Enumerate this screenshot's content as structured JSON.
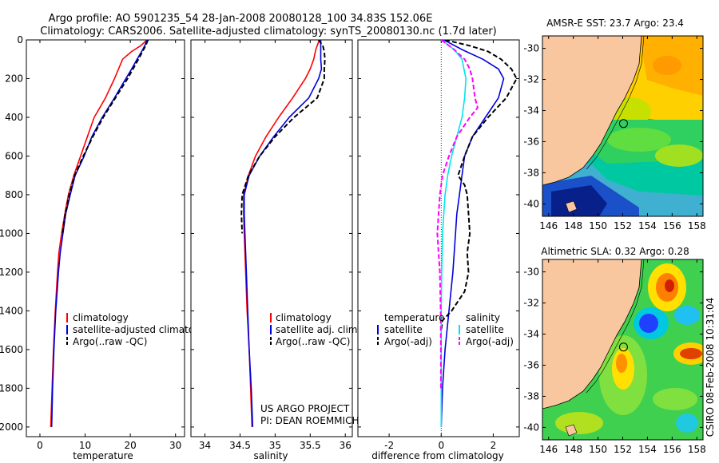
{
  "header": {
    "line1": "Argo profile: AO 5901235_54 28-Jan-2008 20080128_100 34.83S 152.06E",
    "line2": "Climatology: CARS2006. Satellite-adjusted climatology: synTS_20080130.nc (1.7d later)"
  },
  "side_text": "CSIRO 08-Feb-2008 10:31:04",
  "colors": {
    "red": "#ff0000",
    "blue": "#0000dd",
    "black": "#000000",
    "cyan": "#00e5ee",
    "magenta": "#ff00ff",
    "land": "#f8c7a0"
  },
  "chart_data": [
    {
      "type": "line",
      "name": "temperature-profile",
      "xlabel": "temperature",
      "xlim": [
        -3,
        32
      ],
      "ylim": [
        2050,
        0
      ],
      "xticks": [
        0,
        10,
        20,
        30
      ],
      "xtick_labels": [
        "0",
        "10",
        "20",
        "30"
      ],
      "yticks": [
        0,
        200,
        400,
        600,
        800,
        1000,
        1200,
        1400,
        1600,
        1800,
        2000
      ],
      "ytick_labels": [
        "0",
        "200",
        "400",
        "600",
        "800",
        "1000",
        "1200",
        "1400",
        "1600",
        "1800",
        "2000"
      ],
      "legend": [
        "climatology",
        "satellite-adjusted climatology",
        "Argo(..raw -QC)"
      ],
      "series": [
        {
          "name": "climatology",
          "color": "red",
          "dash": false,
          "depth": [
            0,
            30,
            60,
            100,
            200,
            300,
            400,
            500,
            600,
            700,
            800,
            900,
            1000,
            1100,
            1200,
            1400,
            1600,
            1800,
            2000
          ],
          "values": [
            23.7,
            22.3,
            20.3,
            18.3,
            16.5,
            14.5,
            12.0,
            10.5,
            9.0,
            7.5,
            6.3,
            5.5,
            4.8,
            4.2,
            3.9,
            3.4,
            3.0,
            2.7,
            2.4
          ]
        },
        {
          "name": "satellite-adjusted climatology",
          "color": "blue",
          "dash": false,
          "depth": [
            0,
            30,
            60,
            100,
            150,
            200,
            300,
            400,
            500,
            600,
            700,
            800,
            900,
            1000,
            1100,
            1200,
            1400,
            1600,
            1800,
            2000
          ],
          "values": [
            23.7,
            23.2,
            22.5,
            21.5,
            20.3,
            19.0,
            16.5,
            13.8,
            11.5,
            9.8,
            7.8,
            6.7,
            5.7,
            5.1,
            4.5,
            4.1,
            3.5,
            3.1,
            2.8,
            2.6
          ]
        },
        {
          "name": "Argo(..raw -QC)",
          "color": "black",
          "dash": true,
          "depth": [
            0,
            30,
            60,
            100,
            150,
            200,
            300,
            400,
            500,
            600,
            700,
            800,
            900,
            1000
          ],
          "values": [
            23.9,
            23.4,
            22.7,
            21.8,
            20.6,
            19.4,
            16.7,
            14.0,
            11.7,
            9.6,
            7.7,
            6.5,
            5.6,
            5.0
          ]
        }
      ]
    },
    {
      "type": "line",
      "name": "salinity-profile",
      "xlabel": "salinity",
      "xlim": [
        33.8,
        36.1
      ],
      "ylim": [
        2050,
        0
      ],
      "xticks": [
        34,
        34.5,
        35,
        35.5,
        36
      ],
      "xtick_labels": [
        "34",
        "34.5",
        "35",
        "35.5",
        "36"
      ],
      "legend": [
        "climatology",
        "satellite adj. clim.",
        "Argo(..raw -QC)"
      ],
      "annotation": [
        "US ARGO PROJECT",
        "PI: DEAN ROEMMICH"
      ],
      "series": [
        {
          "name": "climatology",
          "color": "red",
          "dash": false,
          "depth": [
            0,
            50,
            100,
            150,
            200,
            300,
            400,
            500,
            600,
            700,
            800,
            900,
            1000,
            1200,
            1400,
            1600,
            1800,
            2000
          ],
          "values": [
            35.63,
            35.58,
            35.55,
            35.5,
            35.43,
            35.25,
            35.05,
            34.87,
            34.72,
            34.62,
            34.55,
            34.55,
            34.56,
            34.58,
            34.6,
            34.63,
            34.65,
            34.67
          ]
        },
        {
          "name": "satellite adj. clim.",
          "color": "blue",
          "dash": false,
          "depth": [
            0,
            50,
            100,
            150,
            200,
            300,
            400,
            500,
            600,
            700,
            800,
            900,
            1000,
            1200,
            1400,
            1600,
            1800,
            2000
          ],
          "values": [
            35.65,
            35.65,
            35.65,
            35.66,
            35.62,
            35.48,
            35.2,
            34.98,
            34.78,
            34.63,
            34.56,
            34.56,
            34.57,
            34.59,
            34.61,
            34.63,
            34.66,
            34.68
          ]
        },
        {
          "name": "Argo(..raw -QC)",
          "color": "black",
          "dash": true,
          "depth": [
            0,
            30,
            60,
            100,
            150,
            200,
            300,
            400,
            500,
            600,
            700,
            800,
            900,
            1000
          ],
          "values": [
            35.62,
            35.68,
            35.7,
            35.71,
            35.7,
            35.7,
            35.6,
            35.27,
            35.0,
            34.78,
            34.62,
            34.53,
            34.52,
            34.53
          ]
        }
      ]
    },
    {
      "type": "line",
      "name": "difference-profile",
      "xlabel": "difference from climatology",
      "xlim": [
        -3.2,
        3.0
      ],
      "ylim": [
        2050,
        0
      ],
      "xticks": [
        -2,
        0,
        2
      ],
      "xtick_labels": [
        "-2",
        "0",
        "2"
      ],
      "legend_groups": [
        {
          "title": "temperature",
          "items": [
            "satellite",
            "Argo(-adj)"
          ]
        },
        {
          "title": "salinity",
          "items": [
            "satellite",
            "Argo(-adj)"
          ]
        }
      ],
      "series": [
        {
          "name": "temperature satellite",
          "color": "blue",
          "dash": false,
          "depth": [
            0,
            50,
            100,
            150,
            200,
            250,
            300,
            400,
            500,
            600,
            700,
            800,
            900,
            1000,
            1200,
            1400,
            1600,
            1800,
            2000
          ],
          "values": [
            0.1,
            0.8,
            1.6,
            2.2,
            2.4,
            2.3,
            2.2,
            1.7,
            1.2,
            0.9,
            0.8,
            0.7,
            0.6,
            0.55,
            0.45,
            0.3,
            0.15,
            0.05,
            0.0
          ]
        },
        {
          "name": "temperature Argo(-adj)",
          "color": "black",
          "dash": true,
          "depth": [
            0,
            30,
            60,
            100,
            150,
            200,
            300,
            400,
            500,
            600,
            700,
            750,
            800,
            900,
            1000,
            1100,
            1200,
            1300,
            1400,
            1450,
            1500
          ],
          "values": [
            0.15,
            1.1,
            1.8,
            2.3,
            2.7,
            2.9,
            2.5,
            1.8,
            1.2,
            0.9,
            0.65,
            0.9,
            1.0,
            1.05,
            1.1,
            1.0,
            1.05,
            0.9,
            0.4,
            0.05,
            0.0
          ]
        },
        {
          "name": "salinity satellite",
          "color": "cyan",
          "dash": false,
          "depth": [
            0,
            50,
            100,
            200,
            300,
            400,
            500,
            600,
            700,
            800,
            900,
            1000,
            1200,
            1400,
            1600,
            1800,
            2000
          ],
          "values": [
            0.0,
            0.5,
            0.8,
            0.95,
            0.9,
            0.8,
            0.6,
            0.4,
            0.25,
            0.15,
            0.1,
            0.05,
            0.02,
            0.0,
            0.0,
            0.0,
            0.0
          ]
        },
        {
          "name": "salinity Argo(-adj)",
          "color": "magenta",
          "dash": true,
          "depth": [
            0,
            50,
            100,
            150,
            200,
            300,
            350,
            400,
            500,
            600,
            700,
            800,
            900,
            1000,
            1200,
            1400,
            1600,
            1800
          ],
          "values": [
            0.0,
            0.5,
            0.9,
            1.1,
            1.2,
            1.3,
            1.4,
            1.1,
            0.6,
            0.3,
            0.05,
            -0.05,
            -0.1,
            -0.15,
            -0.05,
            -0.02,
            -0.01,
            -0.01
          ]
        }
      ]
    },
    {
      "type": "heatmap",
      "name": "sst-map",
      "title": "AMSR-E SST: 23.7  Argo: 23.4",
      "xlim": [
        145.5,
        158.5
      ],
      "ylim": [
        -40.8,
        -29.2
      ],
      "xticks": [
        146,
        148,
        150,
        152,
        154,
        156,
        158
      ],
      "xtick_labels": [
        "146",
        "148",
        "150",
        "152",
        "154",
        "156",
        "158"
      ],
      "yticks": [
        -30,
        -32,
        -34,
        -36,
        -38,
        -40
      ],
      "ytick_labels": [
        "-30",
        "-32",
        "-34",
        "-36",
        "-38",
        "-40"
      ],
      "marker": {
        "lon": 152.06,
        "lat": -34.83
      }
    },
    {
      "type": "heatmap",
      "name": "sla-map",
      "title": "Altimetric SLA: 0.32  Argo: 0.28",
      "xlim": [
        145.5,
        158.5
      ],
      "ylim": [
        -40.8,
        -29.2
      ],
      "xticks": [
        146,
        148,
        150,
        152,
        154,
        156,
        158
      ],
      "xtick_labels": [
        "146",
        "148",
        "150",
        "152",
        "154",
        "156",
        "158"
      ],
      "yticks": [
        -30,
        -32,
        -34,
        -36,
        -38,
        -40
      ],
      "ytick_labels": [
        "-30",
        "-32",
        "-34",
        "-36",
        "-38",
        "-40"
      ],
      "marker": {
        "lon": 152.06,
        "lat": -34.83
      }
    }
  ]
}
